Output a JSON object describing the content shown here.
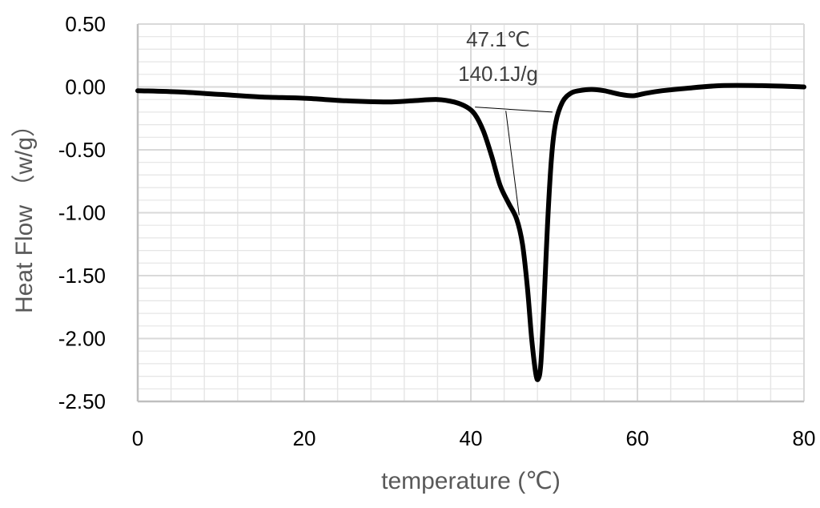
{
  "chart_data": {
    "type": "line",
    "title": "",
    "xlabel": "temperature (℃)",
    "ylabel": "Heat Flow （w/g）",
    "xlim": [
      0,
      80
    ],
    "ylim": [
      -2.5,
      0.5
    ],
    "x_ticks": [
      "0",
      "20",
      "40",
      "60",
      "80"
    ],
    "y_ticks": [
      "0.50",
      "0.00",
      "-0.50",
      "-1.00",
      "-1.50",
      "-2.00",
      "-2.50"
    ],
    "grid": true,
    "legend": "none",
    "annotations": [
      "47.1℃",
      "140.1J/g"
    ],
    "series": [
      {
        "color": "#000000",
        "points": [
          [
            0,
            -0.03
          ],
          [
            5,
            -0.04
          ],
          [
            10,
            -0.06
          ],
          [
            15,
            -0.08
          ],
          [
            20,
            -0.09
          ],
          [
            25,
            -0.11
          ],
          [
            30,
            -0.12
          ],
          [
            33,
            -0.11
          ],
          [
            36,
            -0.1
          ],
          [
            38,
            -0.12
          ],
          [
            39.5,
            -0.16
          ],
          [
            40.5,
            -0.22
          ],
          [
            41.5,
            -0.35
          ],
          [
            42.5,
            -0.55
          ],
          [
            43.5,
            -0.78
          ],
          [
            44.5,
            -0.92
          ],
          [
            45.5,
            -1.05
          ],
          [
            46.2,
            -1.25
          ],
          [
            46.8,
            -1.6
          ],
          [
            47.3,
            -2.0
          ],
          [
            47.8,
            -2.28
          ],
          [
            48.1,
            -2.32
          ],
          [
            48.4,
            -2.2
          ],
          [
            48.8,
            -1.7
          ],
          [
            49.2,
            -1.1
          ],
          [
            49.7,
            -0.55
          ],
          [
            50.2,
            -0.28
          ],
          [
            51,
            -0.12
          ],
          [
            52,
            -0.05
          ],
          [
            53,
            -0.03
          ],
          [
            54.5,
            -0.02
          ],
          [
            56,
            -0.03
          ],
          [
            58,
            -0.06
          ],
          [
            59.5,
            -0.07
          ],
          [
            61,
            -0.05
          ],
          [
            63,
            -0.03
          ],
          [
            66,
            -0.01
          ],
          [
            70,
            0.01
          ],
          [
            75,
            0.01
          ],
          [
            80,
            0.0
          ]
        ]
      }
    ],
    "construction_lines": [
      {
        "color": "#000000",
        "points": [
          [
            40.5,
            -0.16
          ],
          [
            49.8,
            -0.2
          ]
        ]
      },
      {
        "color": "#000000",
        "points": [
          [
            44.2,
            -0.19
          ],
          [
            45.8,
            -1.02
          ]
        ]
      }
    ],
    "styles": {
      "grid_major": "#d9d9d9",
      "grid_minor": "#e5e5e5",
      "axis": "#bfbfbf"
    }
  }
}
